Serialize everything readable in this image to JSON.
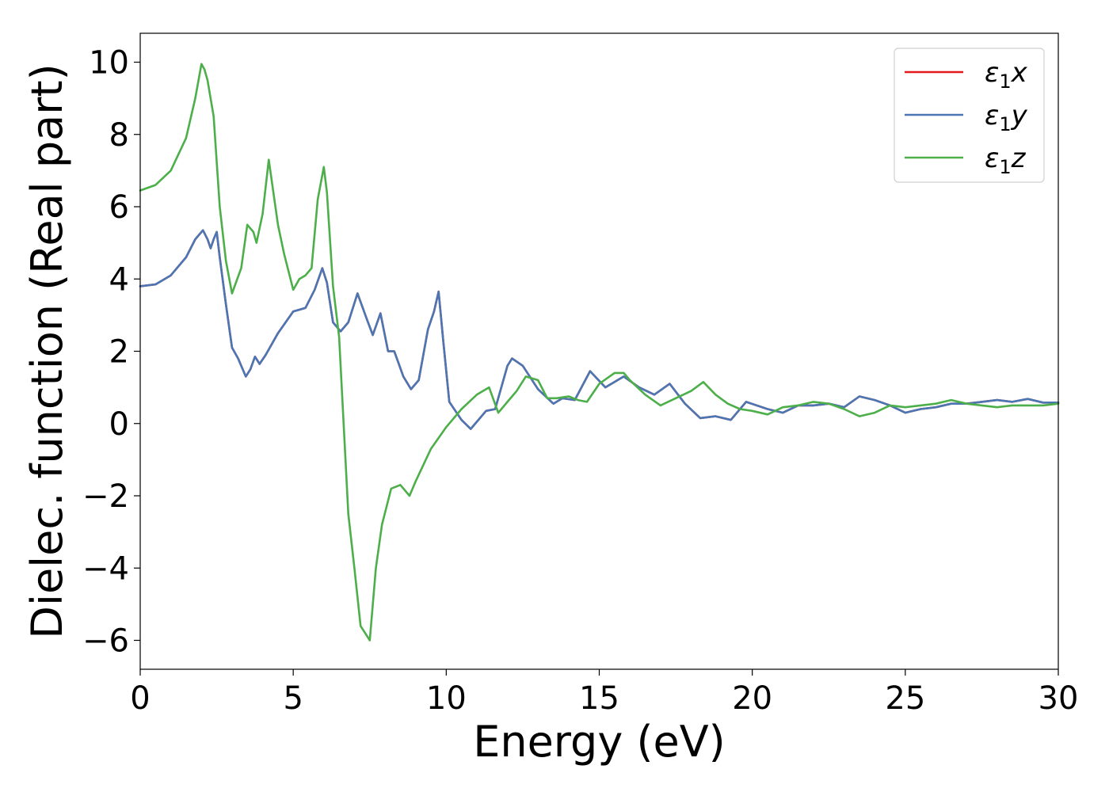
{
  "chart_data": {
    "type": "line",
    "title": "",
    "xlabel": "Energy (eV)",
    "ylabel": "Dielec. function (Real part)",
    "xlim": [
      0,
      30
    ],
    "ylim": [
      -6.8,
      10.8
    ],
    "xticks": [
      0,
      5,
      10,
      15,
      20,
      25,
      30
    ],
    "xtick_labels": [
      "0",
      "5",
      "10",
      "15",
      "20",
      "25",
      "30"
    ],
    "yticks": [
      -6,
      -4,
      -2,
      0,
      2,
      4,
      6,
      8,
      10
    ],
    "ytick_labels": [
      "−6",
      "−4",
      "−2",
      "0",
      "2",
      "4",
      "6",
      "8",
      "10"
    ],
    "grid": false,
    "legend_position": "top-right",
    "series": [
      {
        "name": "ε1x",
        "legend_main": "ε",
        "legend_sub": "1",
        "legend_tail": "x",
        "color": "#e41a1c",
        "x": [
          0,
          0.5,
          1,
          1.5,
          1.8,
          2.05,
          2.2,
          2.3,
          2.4,
          2.5,
          2.6,
          2.8,
          3.0,
          3.2,
          3.45,
          3.6,
          3.75,
          3.9,
          4.1,
          4.5,
          5.0,
          5.4,
          5.7,
          5.95,
          6.1,
          6.3,
          6.55,
          6.8,
          7.1,
          7.4,
          7.6,
          7.85,
          8.1,
          8.3,
          8.6,
          8.85,
          9.1,
          9.4,
          9.6,
          9.75,
          9.9,
          10.1,
          10.5,
          10.8,
          11.3,
          11.6,
          12.0,
          12.15,
          12.5,
          13.0,
          13.5,
          13.8,
          14.2,
          14.7,
          15.2,
          15.8,
          16.3,
          16.8,
          17.3,
          17.8,
          18.3,
          18.8,
          19.3,
          19.8,
          20.5,
          21.0,
          21.5,
          22.0,
          22.5,
          23.0,
          23.5,
          24.0,
          24.5,
          25.0,
          25.5,
          26.0,
          26.5,
          27.0,
          27.5,
          28.0,
          28.5,
          29.0,
          29.5,
          30.0
        ],
        "y": [
          3.8,
          3.85,
          4.1,
          4.6,
          5.1,
          5.35,
          5.1,
          4.85,
          5.1,
          5.3,
          4.6,
          3.3,
          2.1,
          1.8,
          1.3,
          1.5,
          1.85,
          1.65,
          1.9,
          2.5,
          3.1,
          3.2,
          3.7,
          4.3,
          3.9,
          2.8,
          2.55,
          2.8,
          3.6,
          2.9,
          2.45,
          3.05,
          2.0,
          2.0,
          1.3,
          0.95,
          1.2,
          2.6,
          3.1,
          3.65,
          2.3,
          0.6,
          0.1,
          -0.15,
          0.35,
          0.4,
          1.6,
          1.8,
          1.6,
          0.95,
          0.55,
          0.7,
          0.65,
          1.45,
          1.0,
          1.3,
          1.0,
          0.8,
          1.1,
          0.55,
          0.15,
          0.2,
          0.1,
          0.6,
          0.4,
          0.3,
          0.5,
          0.5,
          0.55,
          0.45,
          0.75,
          0.65,
          0.5,
          0.3,
          0.4,
          0.45,
          0.55,
          0.55,
          0.6,
          0.65,
          0.6,
          0.68,
          0.58,
          0.58
        ]
      },
      {
        "name": "ε1y",
        "legend_main": "ε",
        "legend_sub": "1",
        "legend_tail": "y",
        "color": "#4a77b4",
        "x": [
          0,
          0.5,
          1,
          1.5,
          1.8,
          2.05,
          2.2,
          2.3,
          2.4,
          2.5,
          2.6,
          2.8,
          3.0,
          3.2,
          3.45,
          3.6,
          3.75,
          3.9,
          4.1,
          4.5,
          5.0,
          5.4,
          5.7,
          5.95,
          6.1,
          6.3,
          6.55,
          6.8,
          7.1,
          7.4,
          7.6,
          7.85,
          8.1,
          8.3,
          8.6,
          8.85,
          9.1,
          9.4,
          9.6,
          9.75,
          9.9,
          10.1,
          10.5,
          10.8,
          11.3,
          11.6,
          12.0,
          12.15,
          12.5,
          13.0,
          13.5,
          13.8,
          14.2,
          14.7,
          15.2,
          15.8,
          16.3,
          16.8,
          17.3,
          17.8,
          18.3,
          18.8,
          19.3,
          19.8,
          20.5,
          21.0,
          21.5,
          22.0,
          22.5,
          23.0,
          23.5,
          24.0,
          24.5,
          25.0,
          25.5,
          26.0,
          26.5,
          27.0,
          27.5,
          28.0,
          28.5,
          29.0,
          29.5,
          30.0
        ],
        "y": [
          3.8,
          3.85,
          4.1,
          4.6,
          5.1,
          5.35,
          5.1,
          4.85,
          5.1,
          5.3,
          4.6,
          3.3,
          2.1,
          1.8,
          1.3,
          1.5,
          1.85,
          1.65,
          1.9,
          2.5,
          3.1,
          3.2,
          3.7,
          4.3,
          3.9,
          2.8,
          2.55,
          2.8,
          3.6,
          2.9,
          2.45,
          3.05,
          2.0,
          2.0,
          1.3,
          0.95,
          1.2,
          2.6,
          3.1,
          3.65,
          2.3,
          0.6,
          0.1,
          -0.15,
          0.35,
          0.4,
          1.6,
          1.8,
          1.6,
          0.95,
          0.55,
          0.7,
          0.65,
          1.45,
          1.0,
          1.3,
          1.0,
          0.8,
          1.1,
          0.55,
          0.15,
          0.2,
          0.1,
          0.6,
          0.4,
          0.3,
          0.5,
          0.5,
          0.55,
          0.45,
          0.75,
          0.65,
          0.5,
          0.3,
          0.4,
          0.45,
          0.55,
          0.55,
          0.6,
          0.65,
          0.6,
          0.68,
          0.58,
          0.58
        ]
      },
      {
        "name": "ε1z",
        "legend_main": "ε",
        "legend_sub": "1",
        "legend_tail": "z",
        "color": "#4daf4a",
        "x": [
          0,
          0.5,
          1,
          1.5,
          1.8,
          2.0,
          2.1,
          2.2,
          2.4,
          2.6,
          2.8,
          3.0,
          3.3,
          3.5,
          3.7,
          3.8,
          4.0,
          4.2,
          4.5,
          4.7,
          5.0,
          5.2,
          5.4,
          5.6,
          5.8,
          6.0,
          6.1,
          6.3,
          6.5,
          6.8,
          7.0,
          7.2,
          7.5,
          7.7,
          7.9,
          8.2,
          8.5,
          8.8,
          9.0,
          9.5,
          10.0,
          10.5,
          11.0,
          11.4,
          11.7,
          12.0,
          12.3,
          12.6,
          13.0,
          13.3,
          13.6,
          14.0,
          14.3,
          14.6,
          15.0,
          15.5,
          15.8,
          16.0,
          16.5,
          17.0,
          17.5,
          18.0,
          18.4,
          18.8,
          19.2,
          19.6,
          20.0,
          20.5,
          21.0,
          21.5,
          22.0,
          22.5,
          23.0,
          23.5,
          24.0,
          24.5,
          25.0,
          25.5,
          26.0,
          26.5,
          27.0,
          27.5,
          28.0,
          28.5,
          29.0,
          29.5,
          30.0
        ],
        "y": [
          6.45,
          6.6,
          7.0,
          7.9,
          9.0,
          9.95,
          9.8,
          9.5,
          8.5,
          6.0,
          4.5,
          3.6,
          4.3,
          5.5,
          5.3,
          5.0,
          5.8,
          7.3,
          5.5,
          4.7,
          3.7,
          4.0,
          4.1,
          4.3,
          6.2,
          7.1,
          6.4,
          3.8,
          2.4,
          -2.5,
          -4.0,
          -5.6,
          -6.0,
          -4.0,
          -2.8,
          -1.8,
          -1.7,
          -2.0,
          -1.6,
          -0.7,
          -0.1,
          0.4,
          0.8,
          1.0,
          0.3,
          0.6,
          0.9,
          1.3,
          1.2,
          0.7,
          0.7,
          0.75,
          0.65,
          0.6,
          1.1,
          1.4,
          1.4,
          1.2,
          0.8,
          0.5,
          0.7,
          0.9,
          1.15,
          0.8,
          0.55,
          0.4,
          0.35,
          0.25,
          0.45,
          0.5,
          0.6,
          0.55,
          0.4,
          0.2,
          0.3,
          0.5,
          0.45,
          0.5,
          0.55,
          0.65,
          0.55,
          0.5,
          0.45,
          0.5,
          0.5,
          0.5,
          0.55
        ]
      }
    ]
  }
}
